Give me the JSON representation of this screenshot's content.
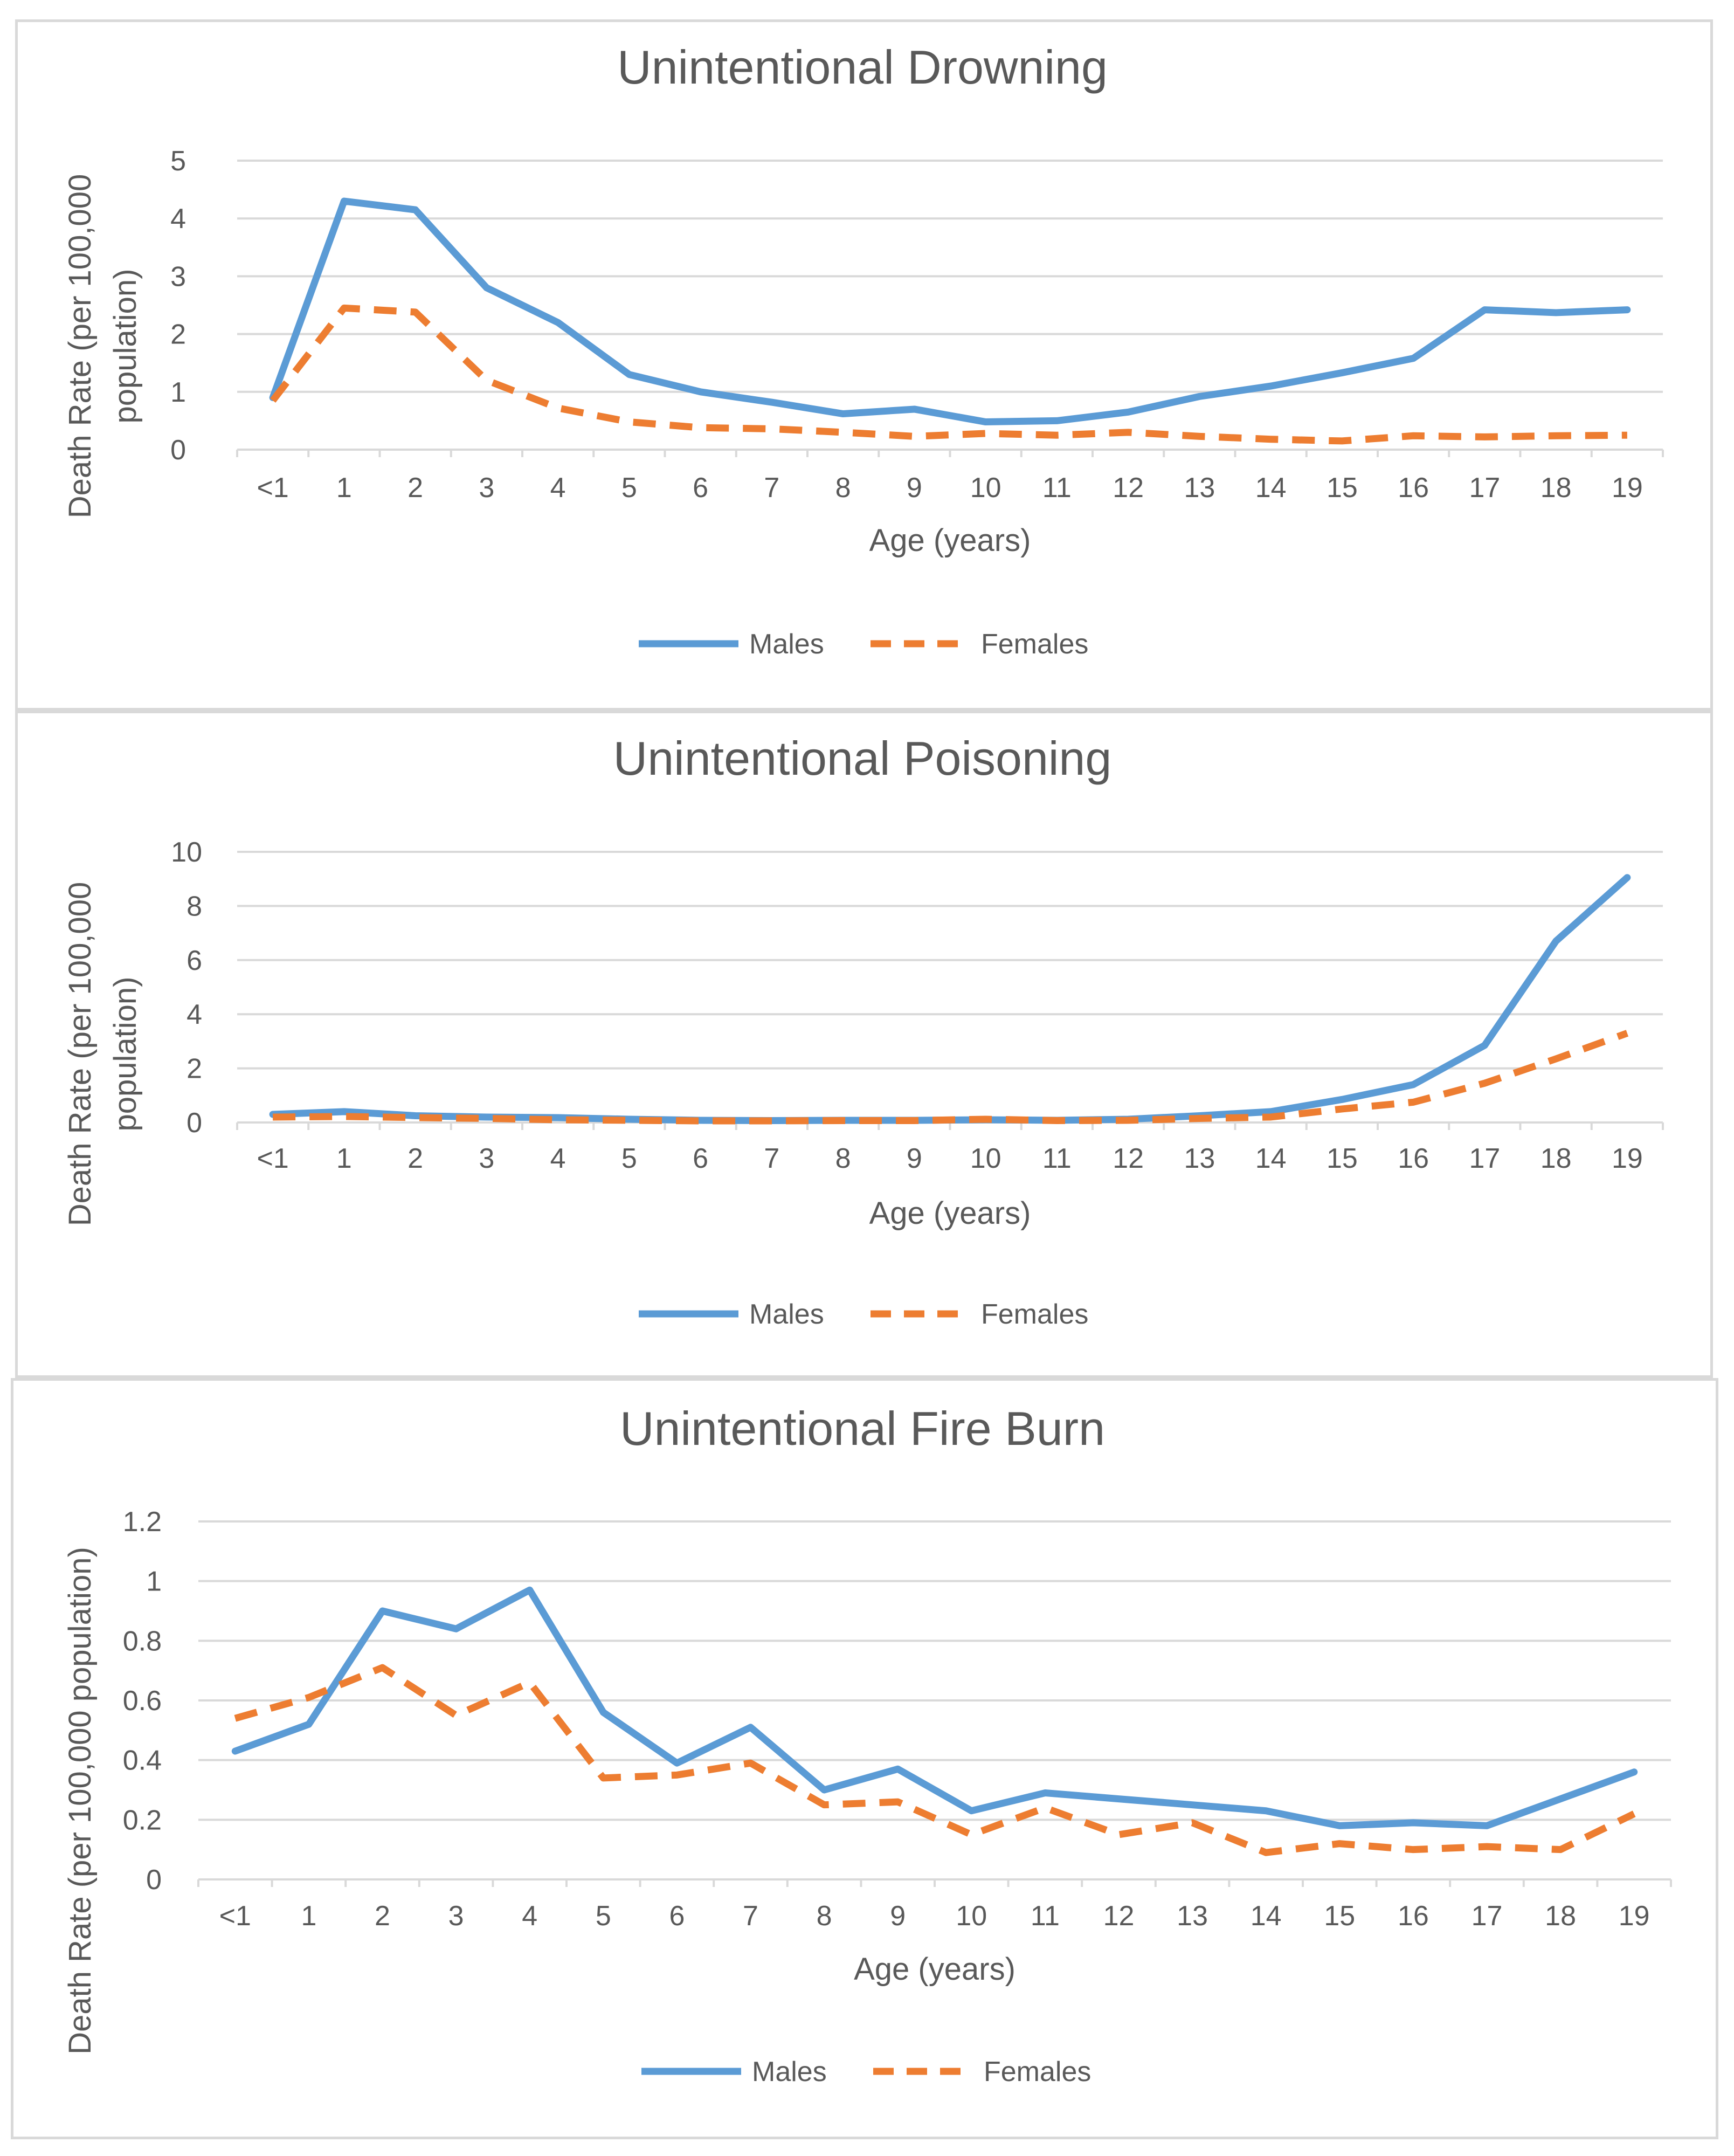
{
  "chart_data": [
    {
      "type": "line",
      "title": "Unintentional Drowning",
      "xlabel": "Age (years)",
      "ylabel_lines": [
        "Death Rate (per 100,000",
        "population)"
      ],
      "categories": [
        "<1",
        "1",
        "2",
        "3",
        "4",
        "5",
        "6",
        "7",
        "8",
        "9",
        "10",
        "11",
        "12",
        "13",
        "14",
        "15",
        "16",
        "17",
        "18",
        "19"
      ],
      "ylim": [
        0,
        5
      ],
      "yticks": [
        0,
        1,
        2,
        3,
        4,
        5
      ],
      "ytick_labels": [
        "0",
        "1",
        "2",
        "3",
        "4",
        "5"
      ],
      "legend_position": "bottom",
      "series": [
        {
          "name": "Males",
          "style": "solid",
          "color": "#5b9bd5",
          "values": [
            0.9,
            4.3,
            4.15,
            2.8,
            2.2,
            1.3,
            1.0,
            0.82,
            0.62,
            0.7,
            0.48,
            0.5,
            0.65,
            0.92,
            1.1,
            1.33,
            1.58,
            2.42,
            2.37,
            2.42
          ]
        },
        {
          "name": "Females",
          "style": "dashed",
          "color": "#ed7d31",
          "values": [
            0.85,
            2.45,
            2.38,
            1.2,
            0.72,
            0.48,
            0.38,
            0.36,
            0.3,
            0.23,
            0.28,
            0.25,
            0.3,
            0.23,
            0.18,
            0.15,
            0.24,
            0.22,
            0.24,
            0.25
          ]
        }
      ]
    },
    {
      "type": "line",
      "title": "Unintentional Poisoning",
      "xlabel": "Age (years)",
      "ylabel_lines": [
        "Death Rate (per 100,000",
        "population)"
      ],
      "categories": [
        "<1",
        "1",
        "2",
        "3",
        "4",
        "5",
        "6",
        "7",
        "8",
        "9",
        "10",
        "11",
        "12",
        "13",
        "14",
        "15",
        "16",
        "17",
        "18",
        "19"
      ],
      "ylim": [
        0,
        10
      ],
      "yticks": [
        0,
        2,
        4,
        6,
        8,
        10
      ],
      "ytick_labels": [
        "0",
        "2",
        "4",
        "6",
        "8",
        "10"
      ],
      "legend_position": "bottom",
      "series": [
        {
          "name": "Males",
          "style": "solid",
          "color": "#5b9bd5",
          "values": [
            0.3,
            0.4,
            0.25,
            0.2,
            0.18,
            0.12,
            0.08,
            0.07,
            0.08,
            0.08,
            0.1,
            0.08,
            0.12,
            0.25,
            0.4,
            0.85,
            1.4,
            2.85,
            6.7,
            9.05
          ]
        },
        {
          "name": "Females",
          "style": "dashed",
          "color": "#ed7d31",
          "values": [
            0.2,
            0.22,
            0.18,
            0.15,
            0.1,
            0.08,
            0.06,
            0.06,
            0.07,
            0.07,
            0.12,
            0.07,
            0.08,
            0.15,
            0.2,
            0.5,
            0.75,
            1.45,
            2.35,
            3.3
          ]
        }
      ]
    },
    {
      "type": "line",
      "title": "Unintentional Fire Burn",
      "xlabel": "Age (years)",
      "ylabel_lines": [
        "Death Rate (per 100,000 population)"
      ],
      "categories": [
        "<1",
        "1",
        "2",
        "3",
        "4",
        "5",
        "6",
        "7",
        "8",
        "9",
        "10",
        "11",
        "12",
        "13",
        "14",
        "15",
        "16",
        "17",
        "18",
        "19"
      ],
      "ylim": [
        0,
        1.2
      ],
      "yticks": [
        0,
        0.2,
        0.4,
        0.6,
        0.8,
        1.0,
        1.2
      ],
      "ytick_labels": [
        "0",
        "0.2",
        "0.4",
        "0.6",
        "0.8",
        "1",
        "1.2"
      ],
      "legend_position": "bottom",
      "series": [
        {
          "name": "Males",
          "style": "solid",
          "color": "#5b9bd5",
          "values": [
            0.43,
            0.52,
            0.9,
            0.84,
            0.97,
            0.56,
            0.39,
            0.51,
            0.3,
            0.37,
            0.23,
            0.29,
            0.27,
            0.25,
            0.23,
            0.18,
            0.19,
            0.18,
            0.27,
            0.36
          ]
        },
        {
          "name": "Females",
          "style": "dashed",
          "color": "#ed7d31",
          "values": [
            0.54,
            0.61,
            0.71,
            0.55,
            0.66,
            0.34,
            0.35,
            0.39,
            0.25,
            0.26,
            0.15,
            0.24,
            0.15,
            0.19,
            0.09,
            0.12,
            0.1,
            0.11,
            0.1,
            0.22
          ]
        }
      ]
    }
  ]
}
